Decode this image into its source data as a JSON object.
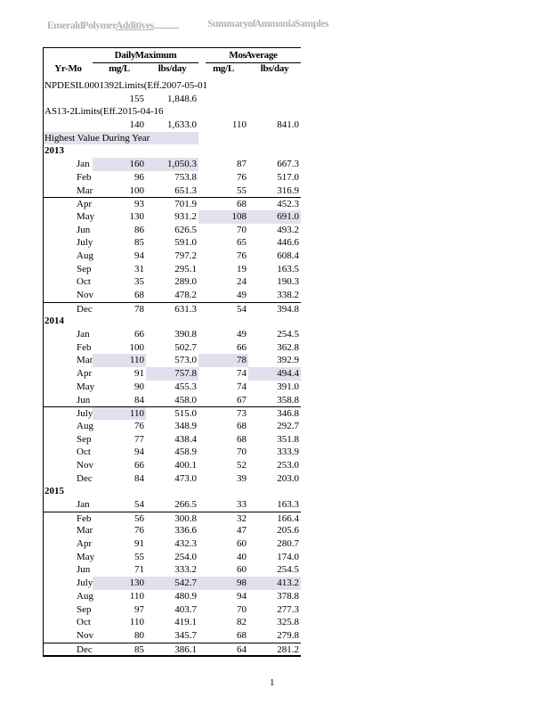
{
  "page": {
    "header_left_main": "Emerald Polymer ",
    "header_left_underlined": "Additives",
    "header_left_suffix": ".",
    "header_right": "Summary of Ammonia Samples",
    "page_number": "1"
  },
  "table": {
    "group_headers": {
      "daily": "Daily Maximum",
      "monthly": "Mos Average"
    },
    "columns": [
      "Yr-Mo",
      "mg/L",
      "lbs/day",
      "mg/L",
      "lbs/day"
    ],
    "colors": {
      "highlight": "#E4DFEC"
    },
    "rows": [
      {
        "type": "text",
        "label": "NPDES IL0001392 Limits (Eff. 2007-05-01"
      },
      {
        "type": "values",
        "label": "",
        "d_mgl": "155",
        "d_lbs": "1,848.6",
        "m_mgl": "",
        "m_lbs": ""
      },
      {
        "type": "text",
        "label": "AS 13-2 Limits (Eff. 2015-04-16"
      },
      {
        "type": "values",
        "label": "",
        "d_mgl": "140",
        "d_lbs": "1,633.0",
        "m_mgl": "110",
        "m_lbs": "841.0"
      },
      {
        "type": "note",
        "label": "Highest Value During Year"
      },
      {
        "type": "year",
        "label": "2013"
      },
      {
        "type": "month",
        "label": "Jan",
        "d_mgl": "160",
        "d_lbs": "1,050.3",
        "m_mgl": "87",
        "m_lbs": "667.3",
        "hl": [
          "d_mgl",
          "d_lbs"
        ]
      },
      {
        "type": "month",
        "label": "Feb",
        "d_mgl": "96",
        "d_lbs": "753.8",
        "m_mgl": "76",
        "m_lbs": "517.0"
      },
      {
        "type": "month",
        "label": "Mar",
        "d_mgl": "100",
        "d_lbs": "651.3",
        "m_mgl": "55",
        "m_lbs": "316.9"
      },
      {
        "type": "month",
        "label": "Apr",
        "d_mgl": "93",
        "d_lbs": "701.9",
        "m_mgl": "68",
        "m_lbs": "452.3",
        "sep": true
      },
      {
        "type": "month",
        "label": "May",
        "d_mgl": "130",
        "d_lbs": "931.2",
        "m_mgl": "108",
        "m_lbs": "691.0",
        "hl": [
          "m_mgl",
          "m_lbs"
        ]
      },
      {
        "type": "month",
        "label": "Jun",
        "d_mgl": "86",
        "d_lbs": "626.5",
        "m_mgl": "70",
        "m_lbs": "493.2"
      },
      {
        "type": "month",
        "label": "July",
        "d_mgl": "85",
        "d_lbs": "591.0",
        "m_mgl": "65",
        "m_lbs": "446.6"
      },
      {
        "type": "month",
        "label": "Aug",
        "d_mgl": "94",
        "d_lbs": "797.2",
        "m_mgl": "76",
        "m_lbs": "608.4"
      },
      {
        "type": "month",
        "label": "Sep",
        "d_mgl": "31",
        "d_lbs": "295.1",
        "m_mgl": "19",
        "m_lbs": "163.5"
      },
      {
        "type": "month",
        "label": "Oct",
        "d_mgl": "35",
        "d_lbs": "289.0",
        "m_mgl": "24",
        "m_lbs": "190.3"
      },
      {
        "type": "month",
        "label": "Nov",
        "d_mgl": "68",
        "d_lbs": "478.2",
        "m_mgl": "49",
        "m_lbs": "338.2"
      },
      {
        "type": "month",
        "label": "Dec",
        "d_mgl": "78",
        "d_lbs": "631.3",
        "m_mgl": "54",
        "m_lbs": "394.8",
        "sep": true
      },
      {
        "type": "year",
        "label": "2014"
      },
      {
        "type": "month",
        "label": "Jan",
        "d_mgl": "66",
        "d_lbs": "390.8",
        "m_mgl": "49",
        "m_lbs": "254.5"
      },
      {
        "type": "month",
        "label": "Feb",
        "d_mgl": "100",
        "d_lbs": "502.7",
        "m_mgl": "66",
        "m_lbs": "362.8"
      },
      {
        "type": "month",
        "label": "Mar",
        "d_mgl": "110",
        "d_lbs": "573.0",
        "m_mgl": "78",
        "m_lbs": "392.9",
        "hl": [
          "d_mgl",
          "m_mgl"
        ]
      },
      {
        "type": "month",
        "label": "Apr",
        "d_mgl": "91",
        "d_lbs": "757.8",
        "m_mgl": "74",
        "m_lbs": "494.4",
        "hl": [
          "d_lbs",
          "m_lbs"
        ]
      },
      {
        "type": "month",
        "label": "May",
        "d_mgl": "90",
        "d_lbs": "455.3",
        "m_mgl": "74",
        "m_lbs": "391.0"
      },
      {
        "type": "month",
        "label": "Jun",
        "d_mgl": "84",
        "d_lbs": "458.0",
        "m_mgl": "67",
        "m_lbs": "358.8"
      },
      {
        "type": "month",
        "label": "July",
        "d_mgl": "110",
        "d_lbs": "515.0",
        "m_mgl": "73",
        "m_lbs": "346.8",
        "sep": true,
        "hl": [
          "d_mgl"
        ]
      },
      {
        "type": "month",
        "label": "Aug",
        "d_mgl": "76",
        "d_lbs": "348.9",
        "m_mgl": "68",
        "m_lbs": "292.7"
      },
      {
        "type": "month",
        "label": "Sep",
        "d_mgl": "77",
        "d_lbs": "438.4",
        "m_mgl": "68",
        "m_lbs": "351.8"
      },
      {
        "type": "month",
        "label": "Oct",
        "d_mgl": "94",
        "d_lbs": "458.9",
        "m_mgl": "70",
        "m_lbs": "333.9"
      },
      {
        "type": "month",
        "label": "Nov",
        "d_mgl": "66",
        "d_lbs": "400.1",
        "m_mgl": "52",
        "m_lbs": "253.0"
      },
      {
        "type": "month",
        "label": "Dec",
        "d_mgl": "84",
        "d_lbs": "473.0",
        "m_mgl": "39",
        "m_lbs": "203.0"
      },
      {
        "type": "year",
        "label": "2015"
      },
      {
        "type": "month",
        "label": "Jan",
        "d_mgl": "54",
        "d_lbs": "266.5",
        "m_mgl": "33",
        "m_lbs": "163.3"
      },
      {
        "type": "month",
        "label": "Feb",
        "d_mgl": "56",
        "d_lbs": "300.8",
        "m_mgl": "32",
        "m_lbs": "166.4",
        "sep": true
      },
      {
        "type": "month",
        "label": "Mar",
        "d_mgl": "76",
        "d_lbs": "336.6",
        "m_mgl": "47",
        "m_lbs": "205.6"
      },
      {
        "type": "month",
        "label": "Apr",
        "d_mgl": "91",
        "d_lbs": "432.3",
        "m_mgl": "60",
        "m_lbs": "280.7"
      },
      {
        "type": "month",
        "label": "May",
        "d_mgl": "55",
        "d_lbs": "254.0",
        "m_mgl": "40",
        "m_lbs": "174.0"
      },
      {
        "type": "month",
        "label": "Jun",
        "d_mgl": "71",
        "d_lbs": "333.2",
        "m_mgl": "60",
        "m_lbs": "254.5"
      },
      {
        "type": "month",
        "label": "July",
        "d_mgl": "130",
        "d_lbs": "542.7",
        "m_mgl": "98",
        "m_lbs": "413.2",
        "hl": [
          "d_mgl",
          "d_lbs",
          "m_mgl",
          "m_lbs"
        ]
      },
      {
        "type": "month",
        "label": "Aug",
        "d_mgl": "110",
        "d_lbs": "480.9",
        "m_mgl": "94",
        "m_lbs": "378.8"
      },
      {
        "type": "month",
        "label": "Sep",
        "d_mgl": "97",
        "d_lbs": "403.7",
        "m_mgl": "70",
        "m_lbs": "277.3"
      },
      {
        "type": "month",
        "label": "Oct",
        "d_mgl": "110",
        "d_lbs": "419.1",
        "m_mgl": "82",
        "m_lbs": "325.8"
      },
      {
        "type": "month",
        "label": "Nov",
        "d_mgl": "80",
        "d_lbs": "345.7",
        "m_mgl": "68",
        "m_lbs": "279.8"
      },
      {
        "type": "month",
        "label": "Dec",
        "d_mgl": "85",
        "d_lbs": "386.1",
        "m_mgl": "64",
        "m_lbs": "281.2",
        "sep": true
      }
    ]
  }
}
